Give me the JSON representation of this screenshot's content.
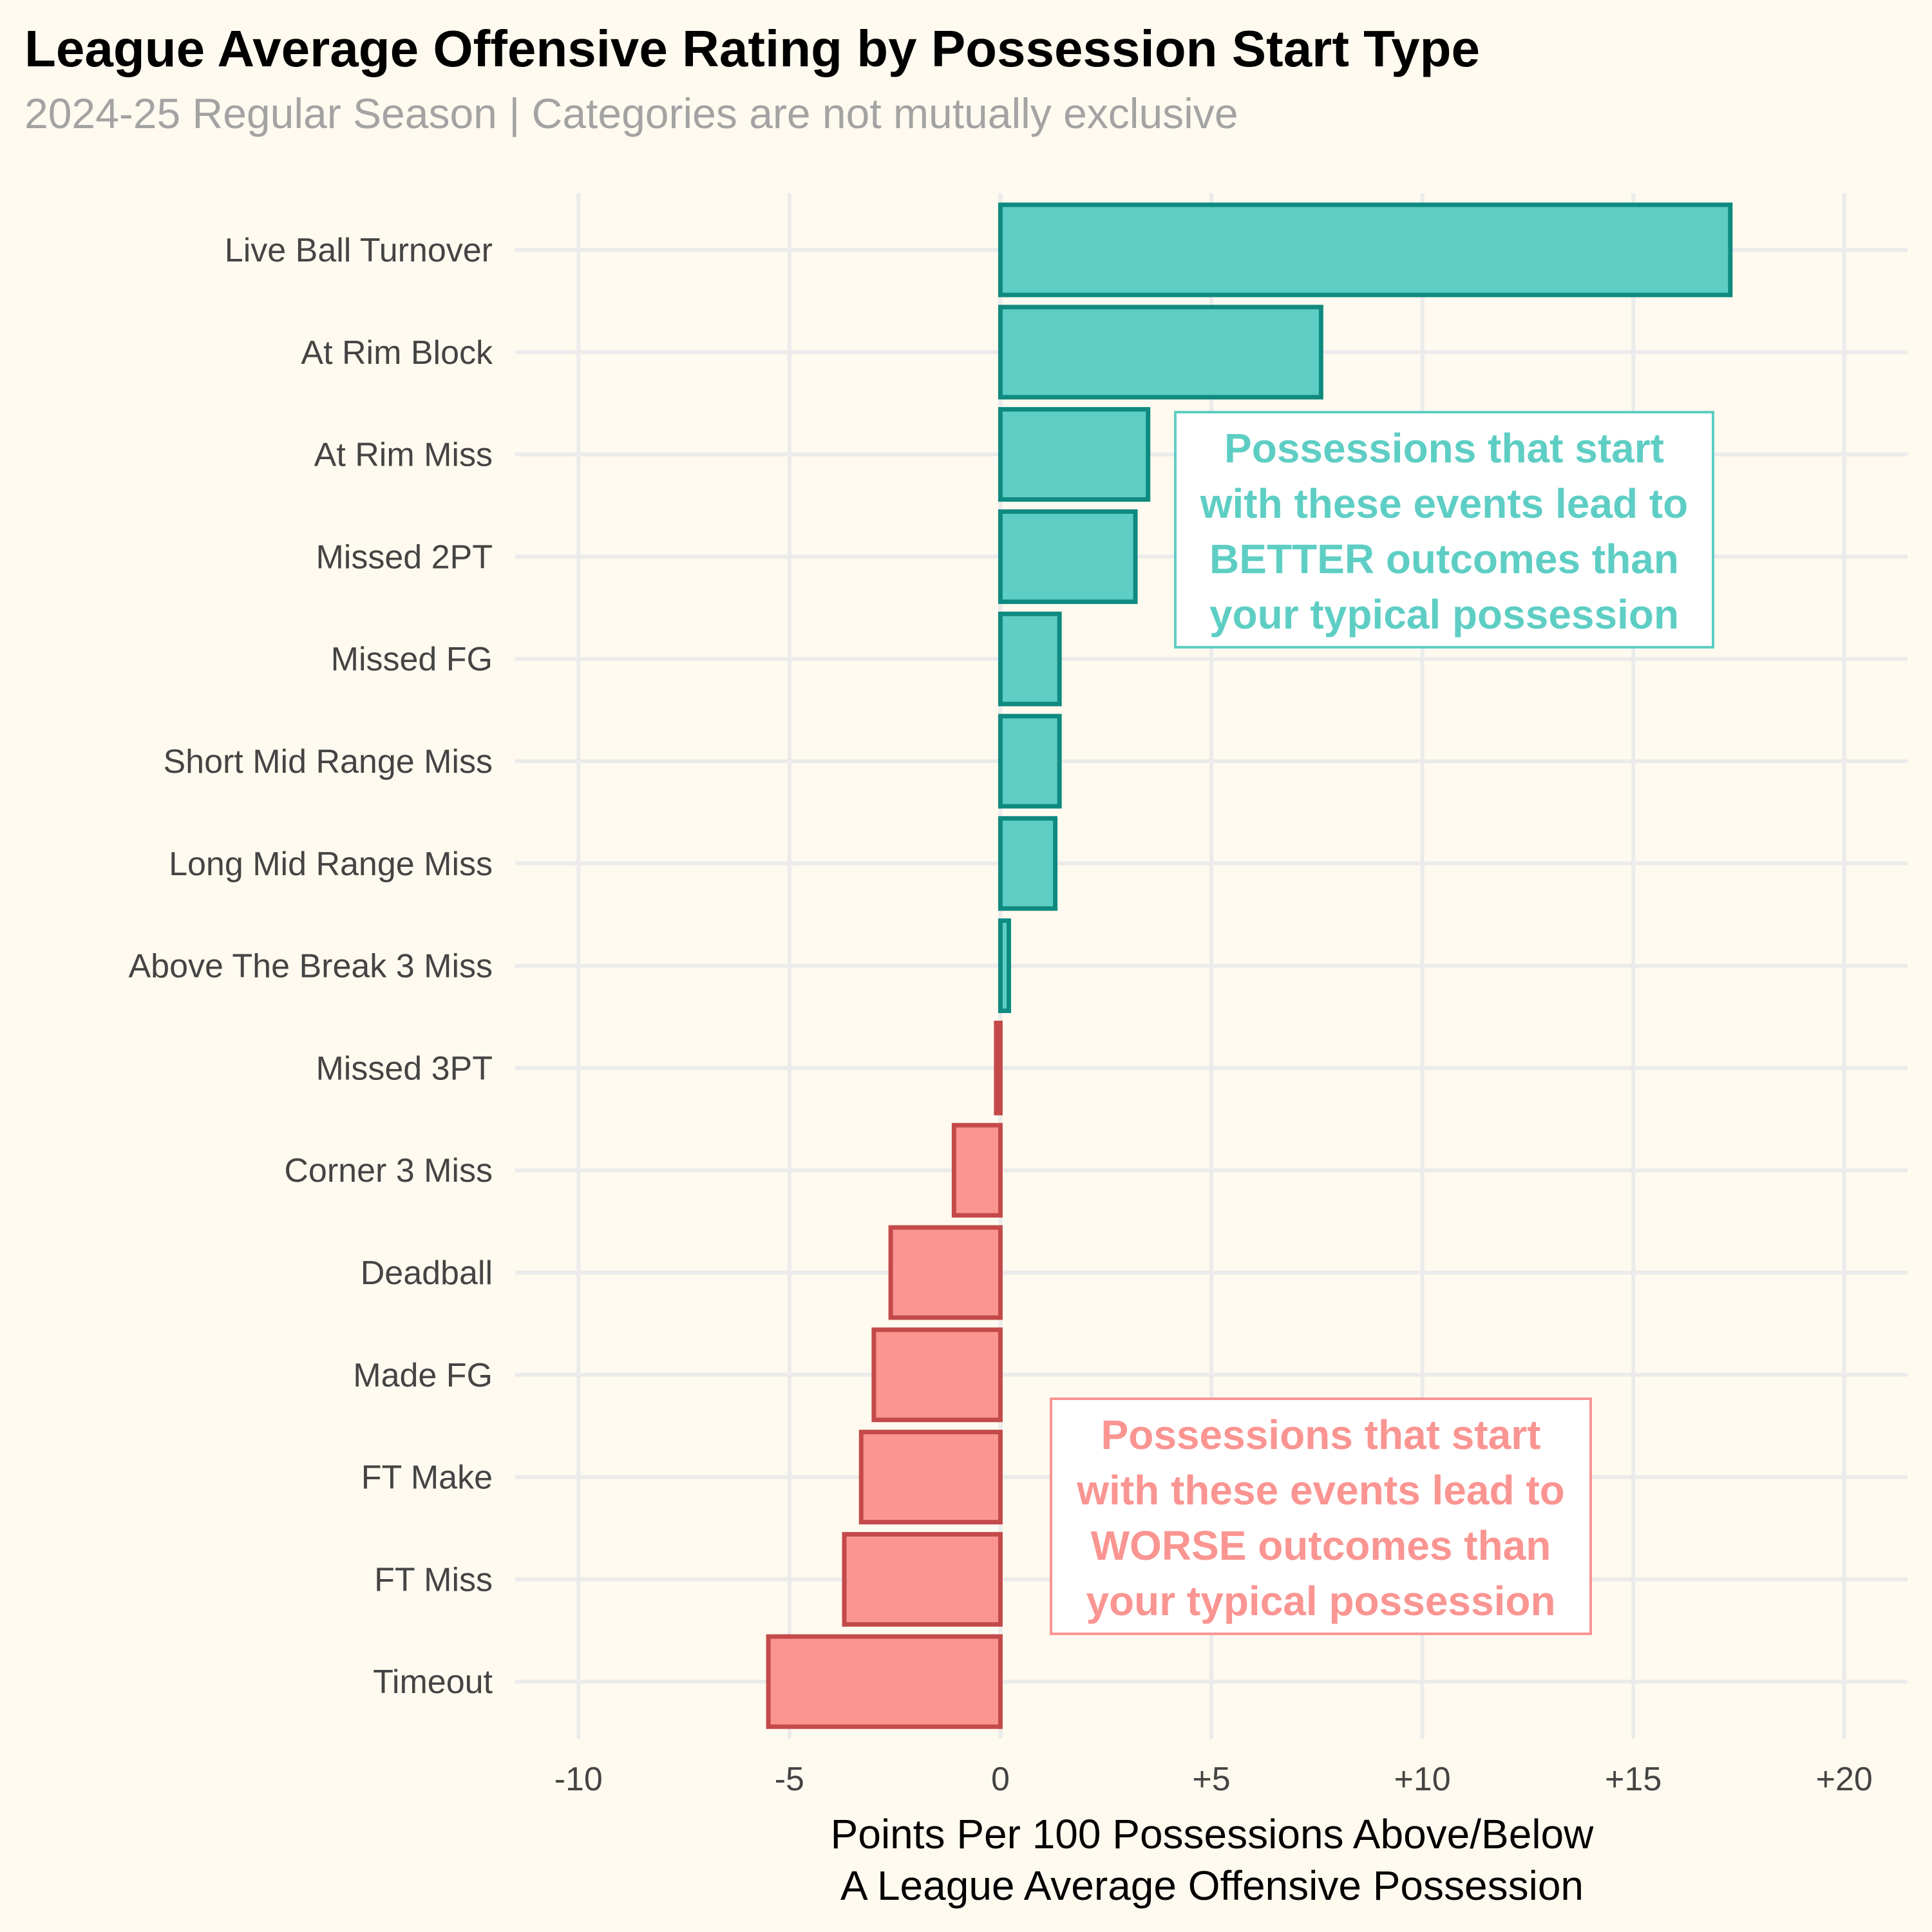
{
  "title": "League Average Offensive Rating by Possession Start Type",
  "subtitle": "2024-25 Regular Season | Categories are not mutually exclusive",
  "colors": {
    "positive_fill": "#5ecec4",
    "positive_stroke": "#0f8a80",
    "negative_fill": "#fa9592",
    "negative_stroke": "#c44a4a",
    "grid": "#ebebeb",
    "background": "#fffaef"
  },
  "chart_data": {
    "type": "bar",
    "orientation": "horizontal",
    "categories": [
      "Live Ball Turnover",
      "At Rim Block",
      "At Rim Miss",
      "Missed 2PT",
      "Missed FG",
      "Short Mid Range Miss",
      "Long Mid Range Miss",
      "Above The Break 3 Miss",
      "Missed 3PT",
      "Corner 3 Miss",
      "Deadball",
      "Made FG",
      "FT Make",
      "FT Miss",
      "Timeout"
    ],
    "values": [
      17.3,
      7.6,
      3.5,
      3.2,
      1.4,
      1.4,
      1.3,
      0.2,
      -0.1,
      -1.1,
      -2.6,
      -3.0,
      -3.3,
      -3.7,
      -5.5
    ],
    "xlim": [
      -11.5,
      21.5
    ],
    "x_ticks": [
      -10,
      -5,
      0,
      5,
      10,
      15,
      20
    ],
    "x_tick_labels": [
      "-10",
      "-5",
      "0",
      "+5",
      "+10",
      "+15",
      "+20"
    ],
    "xlabel": "Points Per 100 Possessions Above/Below\nA League Average Offensive Possession",
    "ylabel": "",
    "grid": true,
    "annotations": [
      {
        "id": "better",
        "lines": [
          "Possessions that start",
          "with these events lead to",
          "BETTER outcomes than",
          "your typical possession"
        ]
      },
      {
        "id": "worse",
        "lines": [
          "Possessions that start",
          "with these events lead to",
          "WORSE outcomes than",
          "your typical possession"
        ]
      }
    ]
  }
}
